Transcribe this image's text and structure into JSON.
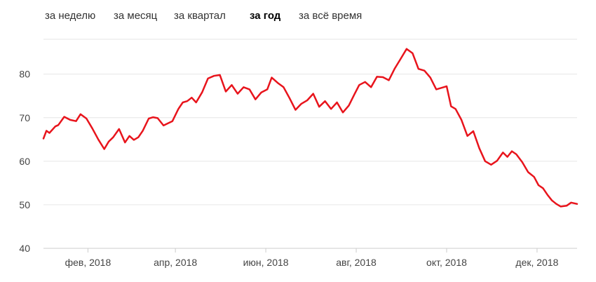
{
  "tabs": [
    {
      "label": "за неделю",
      "active": false
    },
    {
      "label": "за месяц",
      "active": false
    },
    {
      "label": "за квартал",
      "active": false
    },
    {
      "label": "за год",
      "active": true
    },
    {
      "label": "за всё время",
      "active": false
    }
  ],
  "colors": {
    "line": "#e8141c",
    "grid": "#e6e6e6",
    "axis": "#cccccc",
    "text": "#444444"
  },
  "chart_data": {
    "type": "line",
    "ylim": [
      40,
      88
    ],
    "y_ticks": [
      40,
      50,
      60,
      70,
      80
    ],
    "grid": true,
    "x_ticks": [
      {
        "label": "фев, 2018",
        "x": "2018-02-01"
      },
      {
        "label": "апр, 2018",
        "x": "2018-04-01"
      },
      {
        "label": "июн, 2018",
        "x": "2018-06-01"
      },
      {
        "label": "авг, 2018",
        "x": "2018-08-01"
      },
      {
        "label": "окт, 2018",
        "x": "2018-10-01"
      },
      {
        "label": "дек, 2018",
        "x": "2018-12-01"
      }
    ],
    "xlim": [
      "2018-01-02",
      "2018-12-28"
    ],
    "series": [
      {
        "x": [
          "2018-01-02",
          "2018-01-04",
          "2018-01-06",
          "2018-01-10",
          "2018-01-12",
          "2018-01-16",
          "2018-01-20",
          "2018-01-24",
          "2018-01-27",
          "2018-01-31",
          "2018-02-04",
          "2018-02-08",
          "2018-02-12",
          "2018-02-15",
          "2018-02-18",
          "2018-02-22",
          "2018-02-26",
          "2018-03-01",
          "2018-03-04",
          "2018-03-07",
          "2018-03-10",
          "2018-03-14",
          "2018-03-17",
          "2018-03-20",
          "2018-03-24",
          "2018-03-27",
          "2018-03-30",
          "2018-04-03",
          "2018-04-06",
          "2018-04-09",
          "2018-04-12",
          "2018-04-15",
          "2018-04-19",
          "2018-04-23",
          "2018-04-27",
          "2018-05-01",
          "2018-05-05",
          "2018-05-09",
          "2018-05-13",
          "2018-05-17",
          "2018-05-21",
          "2018-05-25",
          "2018-05-29",
          "2018-06-02",
          "2018-06-05",
          "2018-06-09",
          "2018-06-13",
          "2018-06-17",
          "2018-06-21",
          "2018-06-25",
          "2018-06-29",
          "2018-07-03",
          "2018-07-07",
          "2018-07-11",
          "2018-07-15",
          "2018-07-19",
          "2018-07-23",
          "2018-07-27",
          "2018-07-31",
          "2018-08-03",
          "2018-08-07",
          "2018-08-11",
          "2018-08-15",
          "2018-08-19",
          "2018-08-23",
          "2018-08-27",
          "2018-08-31",
          "2018-09-04",
          "2018-09-08",
          "2018-09-12",
          "2018-09-16",
          "2018-09-20",
          "2018-09-24",
          "2018-09-28",
          "2018-10-01",
          "2018-10-04",
          "2018-10-07",
          "2018-10-11",
          "2018-10-15",
          "2018-10-19",
          "2018-10-23",
          "2018-10-27",
          "2018-10-31",
          "2018-11-04",
          "2018-11-08",
          "2018-11-11",
          "2018-11-14",
          "2018-11-17",
          "2018-11-21",
          "2018-11-25",
          "2018-11-29",
          "2018-12-02",
          "2018-12-05",
          "2018-12-08",
          "2018-12-11",
          "2018-12-14",
          "2018-12-17",
          "2018-12-21",
          "2018-12-24",
          "2018-12-28"
        ],
        "values": [
          65.2,
          67,
          66.5,
          68,
          68.3,
          70.2,
          69.5,
          69.2,
          70.8,
          69.8,
          67.5,
          65,
          62.8,
          64.5,
          65.5,
          67.4,
          64.3,
          65.8,
          64.9,
          65.5,
          67,
          69.8,
          70.1,
          69.9,
          68.2,
          68.7,
          69.2,
          72,
          73.5,
          73.8,
          74.6,
          73.5,
          75.8,
          79,
          79.6,
          79.8,
          76,
          77.5,
          75.5,
          77,
          76.5,
          74.2,
          75.8,
          76.5,
          79.2,
          78,
          77,
          74.5,
          71.8,
          73.2,
          74,
          75.5,
          72.5,
          73.8,
          72,
          73.5,
          71.2,
          72.8,
          75.5,
          77.5,
          78.2,
          77,
          79.4,
          79.3,
          78.6,
          81.3,
          83.5,
          85.8,
          84.8,
          81.2,
          80.8,
          79.2,
          76.5,
          76.9,
          77.2,
          72.6,
          72,
          69.5,
          65.8,
          66.9,
          63,
          60,
          59.2,
          60.1,
          62,
          61,
          62.3,
          61.6,
          59.8,
          57.5,
          56.4,
          54.5,
          53.8,
          52.3,
          51,
          50.2,
          49.6,
          49.8,
          50.5,
          50.2
        ]
      }
    ]
  }
}
